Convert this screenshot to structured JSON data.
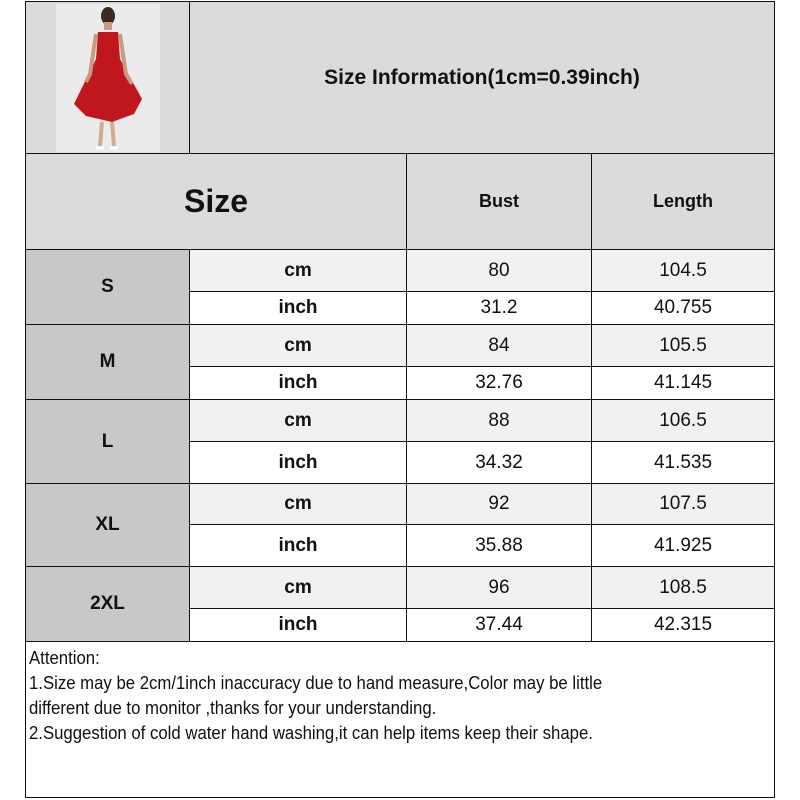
{
  "title": "Size Information(1cm=0.39inch)",
  "size_header": "Size",
  "columns": [
    "Bust",
    "Length"
  ],
  "rows": [
    {
      "size": "S",
      "cm": [
        "80",
        "104.5"
      ],
      "inch": [
        "31.2",
        "40.755"
      ]
    },
    {
      "size": "M",
      "cm": [
        "84",
        "105.5"
      ],
      "inch": [
        "32.76",
        "41.145"
      ]
    },
    {
      "size": "L",
      "cm": [
        "88",
        "106.5"
      ],
      "inch": [
        "34.32",
        "41.535"
      ]
    },
    {
      "size": "XL",
      "cm": [
        "92",
        "107.5"
      ],
      "inch": [
        "35.88",
        "41.925"
      ]
    },
    {
      "size": "2XL",
      "cm": [
        "96",
        "108.5"
      ],
      "inch": [
        "37.44",
        "42.315"
      ]
    }
  ],
  "unit_cm": "cm",
  "unit_inch": "inch",
  "attention": {
    "heading": "Attention:",
    "line1": "1.Size may be 2cm/1inch inaccuracy due to hand measure,Color may be little",
    "line2": "different due to monitor ,thanks for your understanding.",
    "line3": "2.Suggestion of cold water hand washing,it can help items keep their shape."
  },
  "colors": {
    "header": "#dcdbdb",
    "size_cell": "#c9c7c7",
    "cm_row": "#f1f1f1",
    "dress": "#c0161e"
  }
}
